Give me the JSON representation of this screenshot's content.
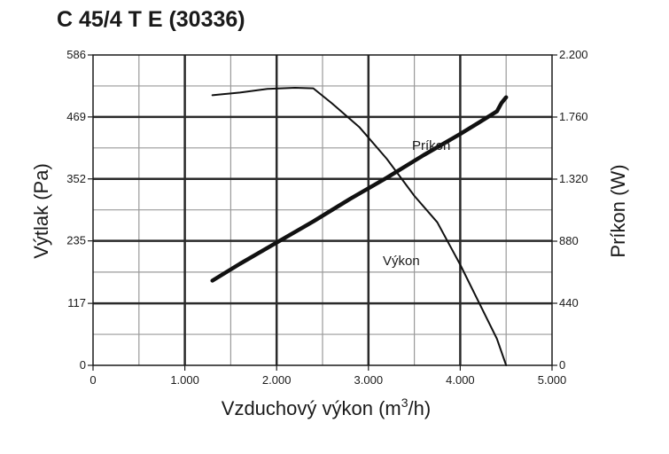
{
  "chart_data": {
    "type": "line",
    "title": "C 45/4 T E (30336)",
    "xlabel_main": "Vzduchový výkon (m",
    "xlabel_sup": "3",
    "xlabel_end": "/h)",
    "ylabel_left": "Výtlak (Pa)",
    "ylabel_right": "Príkon (W)",
    "xlim": [
      0,
      5000
    ],
    "ylim_left": [
      0,
      586
    ],
    "ylim_right": [
      0,
      2200
    ],
    "x_ticks": [
      0,
      1000,
      2000,
      3000,
      4000,
      5000
    ],
    "x_tick_labels": [
      "0",
      "1.000",
      "2.000",
      "3.000",
      "4.000",
      "5.000"
    ],
    "y_left_ticks": [
      0,
      117,
      235,
      352,
      469,
      586
    ],
    "y_left_tick_labels": [
      "0",
      "117",
      "235",
      "352",
      "469",
      "586"
    ],
    "y_right_ticks": [
      0,
      440,
      880,
      1320,
      1760,
      2200
    ],
    "y_right_tick_labels": [
      "0",
      "440",
      "880",
      "1.320",
      "1.760",
      "2.200"
    ],
    "grid": true,
    "series": [
      {
        "name": "Výkon",
        "axis": "left",
        "x": [
          1300,
          1600,
          1900,
          2200,
          2400,
          2600,
          2900,
          3200,
          3500,
          3750,
          4000,
          4200,
          4400,
          4500
        ],
        "y": [
          510,
          515,
          522,
          524,
          523,
          495,
          450,
          390,
          320,
          270,
          190,
          120,
          50,
          0
        ]
      },
      {
        "name": "Príkon",
        "axis": "right",
        "x": [
          1300,
          1600,
          2000,
          2400,
          2800,
          3200,
          3600,
          4000,
          4200,
          4400,
          4450,
          4500
        ],
        "y": [
          600,
          720,
          870,
          1020,
          1180,
          1330,
          1490,
          1640,
          1720,
          1800,
          1860,
          1900
        ]
      }
    ]
  }
}
